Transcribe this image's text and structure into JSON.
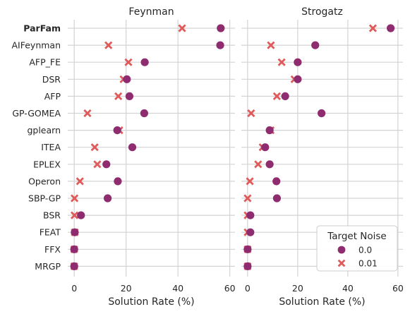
{
  "chart_data": {
    "type": "scatter",
    "categories": [
      "ParFam",
      "AIFeynman",
      "AFP_FE",
      "DSR",
      "AFP",
      "GP-GOMEA",
      "gplearn",
      "ITEA",
      "EPLEX",
      "Operon",
      "SBP-GP",
      "BSR",
      "FEAT",
      "FFX",
      "MRGP"
    ],
    "bold_category": "ParFam",
    "panels": [
      {
        "title": "Feynman",
        "xlabel": "Solution Rate (%)",
        "xlim": [
          -2.5,
          62
        ],
        "xticks": [
          0,
          20,
          40,
          60
        ],
        "series": [
          {
            "name": "0.0",
            "values": [
              56.5,
              56.3,
              27.2,
              20.3,
              21.3,
              27.0,
              16.6,
              22.4,
              12.4,
              16.8,
              12.9,
              2.6,
              0.2,
              0.0,
              0.0
            ]
          },
          {
            "name": "0.01",
            "values": [
              41.6,
              13.2,
              20.9,
              19.0,
              17.0,
              5.1,
              17.4,
              7.9,
              8.9,
              2.2,
              0.1,
              0.1,
              0.2,
              0.0,
              0.0
            ]
          }
        ]
      },
      {
        "title": "Strogatz",
        "xlabel": "Solution Rate (%)",
        "xlim": [
          -2.5,
          62
        ],
        "xticks": [
          0,
          20,
          40,
          60
        ],
        "series": [
          {
            "name": "0.0",
            "values": [
              57.1,
              27.0,
              20.0,
              20.0,
              15.0,
              29.5,
              8.8,
              7.0,
              8.8,
              11.5,
              11.7,
              1.1,
              1.1,
              0.0,
              0.0
            ]
          },
          {
            "name": "0.01",
            "values": [
              50.0,
              9.3,
              13.6,
              18.7,
              11.7,
              1.4,
              9.2,
              6.0,
              4.2,
              0.9,
              0.0,
              0.0,
              0.0,
              0.0,
              0.0
            ]
          }
        ]
      }
    ],
    "legend": {
      "title": "Target Noise",
      "placement": "lower-right",
      "entries": [
        {
          "label": "0.0",
          "marker": "circle",
          "color": "#8e2c6f"
        },
        {
          "label": "0.01",
          "marker": "x",
          "color": "#e05a5a"
        }
      ]
    },
    "grid": true,
    "colors": {
      "series_0": "#8e2c6f",
      "series_1": "#e05a5a",
      "grid": "#d3d3d3",
      "text": "#262626"
    }
  }
}
